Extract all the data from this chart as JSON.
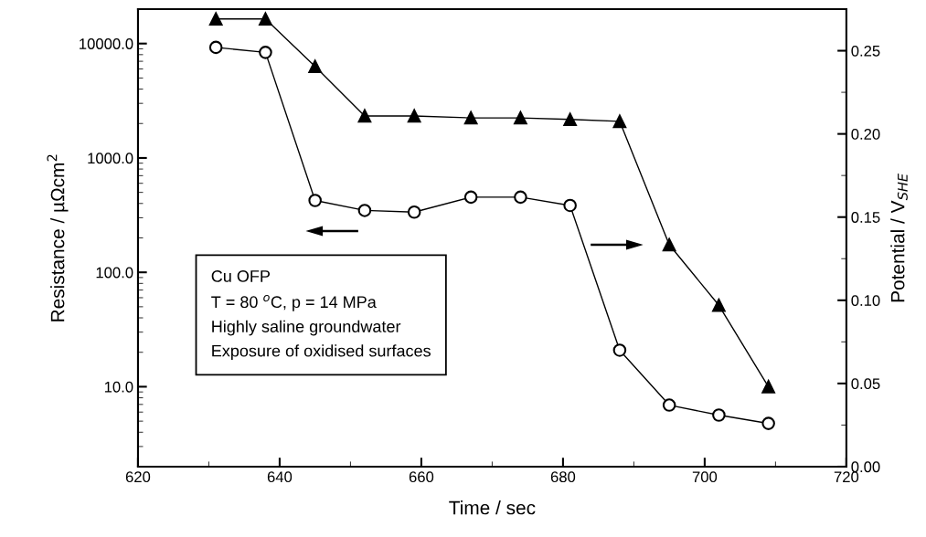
{
  "chart_data": {
    "type": "line",
    "xlabel": "Time / sec",
    "ylabel": "Resistance / µΩcm$^{2}$",
    "y2label": "Potential / V$_{SHE}$",
    "x": [
      631,
      638,
      645,
      652,
      659,
      667,
      674,
      681,
      688,
      695,
      702,
      709
    ],
    "series": [
      {
        "color": "#000000",
        "marker": "triangle",
        "values": [
          16400,
          16400,
          6300,
          2330,
          2330,
          2240,
          2240,
          2170,
          2090,
          174,
          51.5,
          10
        ]
      },
      {
        "color": "#000000",
        "marker": "circle",
        "axis": "y2",
        "values": [
          0.252,
          0.249,
          0.16,
          0.154,
          0.153,
          0.162,
          0.162,
          0.157,
          0.07,
          0.037,
          0.031,
          0.026
        ]
      }
    ],
    "log": "y",
    "line_style": "solid",
    "xlim": [
      620,
      720
    ],
    "xticks": [
      620,
      640,
      660,
      680,
      700,
      720
    ],
    "ylim": [
      2,
      20000
    ],
    "yticks": [
      {
        "value": 10,
        "label": "10.0"
      },
      {
        "value": 100,
        "label": "100.0"
      },
      {
        "value": 1000,
        "label": "1000.0"
      },
      {
        "value": 10000,
        "label": "10000.0"
      }
    ],
    "y2lim": [
      0,
      0.275
    ],
    "y2ticks": [
      {
        "value": 0,
        "label": "0.00"
      },
      {
        "value": 0.05,
        "label": "0.05"
      },
      {
        "value": 0.1,
        "label": "0.10"
      },
      {
        "value": 0.15,
        "label": "0.15"
      },
      {
        "value": 0.2,
        "label": "0.20"
      },
      {
        "value": 0.25,
        "label": "0.25"
      }
    ],
    "grid": false,
    "legend": false,
    "annotations": [
      "Cu OFP",
      "T = 80 $^{o}$C, p = 14 MPa",
      "Highly saline groundwater",
      "Exposure of oxidised surfaces"
    ]
  }
}
